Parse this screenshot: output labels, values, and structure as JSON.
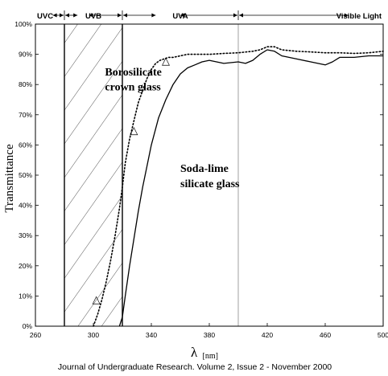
{
  "chart_data": {
    "type": "line",
    "title": "",
    "xlabel": "λ",
    "xlabel_unit": "[nm]",
    "ylabel": "Transmittance",
    "xlim": [
      260,
      500
    ],
    "ylim": [
      0,
      100
    ],
    "x_ticks": [
      260,
      300,
      340,
      380,
      420,
      460,
      500
    ],
    "x_tick_labels": [
      "260",
      "300",
      "340",
      "380",
      "420",
      "460",
      "500"
    ],
    "y_ticks": [
      0,
      10,
      20,
      30,
      40,
      50,
      60,
      70,
      80,
      90,
      100
    ],
    "y_tick_labels": [
      "0%",
      "10%",
      "20%",
      "30%",
      "40%",
      "50%",
      "60%",
      "70%",
      "80%",
      "90%",
      "100%"
    ],
    "grid": false,
    "regions": [
      {
        "label": "UVC",
        "from": 260,
        "to": 280
      },
      {
        "label": "UVB",
        "from": 280,
        "to": 320
      },
      {
        "label": "UVA",
        "from": 320,
        "to": 400
      },
      {
        "label": "Visible Light",
        "from": 400,
        "to": 500
      }
    ],
    "hatched_band": {
      "from": 280,
      "to": 320
    },
    "series": [
      {
        "name": "Borosilicate crown glass",
        "style": "dotted",
        "x": [
          300,
          303,
          306,
          309,
          312,
          315,
          318,
          320,
          322,
          325,
          328,
          331,
          334,
          337,
          340,
          343,
          346,
          349,
          352,
          355,
          360,
          365,
          370,
          380,
          390,
          400,
          410,
          415,
          420,
          425,
          430,
          440,
          450,
          460,
          470,
          480,
          490,
          500
        ],
        "values": [
          0,
          4,
          9,
          15,
          22,
          30,
          39,
          46,
          54,
          62,
          68,
          74,
          78,
          82,
          85,
          87,
          88,
          88.5,
          89,
          89,
          89.5,
          90,
          90,
          90,
          90.3,
          90.5,
          91,
          91.5,
          92.5,
          92.5,
          91.5,
          91,
          90.8,
          90.5,
          90.5,
          90.3,
          90.5,
          91
        ]
      },
      {
        "name": "Soda-lime silicate glass",
        "style": "solid",
        "x": [
          318,
          320,
          322,
          325,
          328,
          331,
          334,
          337,
          340,
          345,
          350,
          355,
          360,
          365,
          370,
          375,
          380,
          390,
          400,
          405,
          410,
          415,
          420,
          425,
          430,
          440,
          450,
          455,
          460,
          465,
          470,
          480,
          490,
          500
        ],
        "values": [
          0,
          3,
          10,
          20,
          29,
          38,
          46,
          53,
          60,
          69,
          75,
          80,
          83.5,
          85.5,
          86.5,
          87.5,
          88,
          87,
          87.5,
          87,
          88,
          90,
          91.5,
          91,
          89.5,
          88.5,
          87.5,
          87,
          86.5,
          87.5,
          89,
          89,
          89.5,
          89.5
        ]
      }
    ],
    "markers": [
      {
        "symbol": "△",
        "x": 302,
        "y": 9
      },
      {
        "symbol": "△",
        "x": 328,
        "y": 65
      },
      {
        "symbol": "△",
        "x": 350,
        "y": 88
      }
    ],
    "annotations": [
      {
        "text": "Borosilicate",
        "x": 308,
        "y": 83
      },
      {
        "text": "crown glass",
        "x": 308,
        "y": 78
      },
      {
        "text": "Soda-lime",
        "x": 360,
        "y": 51
      },
      {
        "text": "silicate glass",
        "x": 360,
        "y": 46
      }
    ]
  },
  "caption": "Journal of Undergraduate Research. Volume 2, Issue 2 - November 2000"
}
